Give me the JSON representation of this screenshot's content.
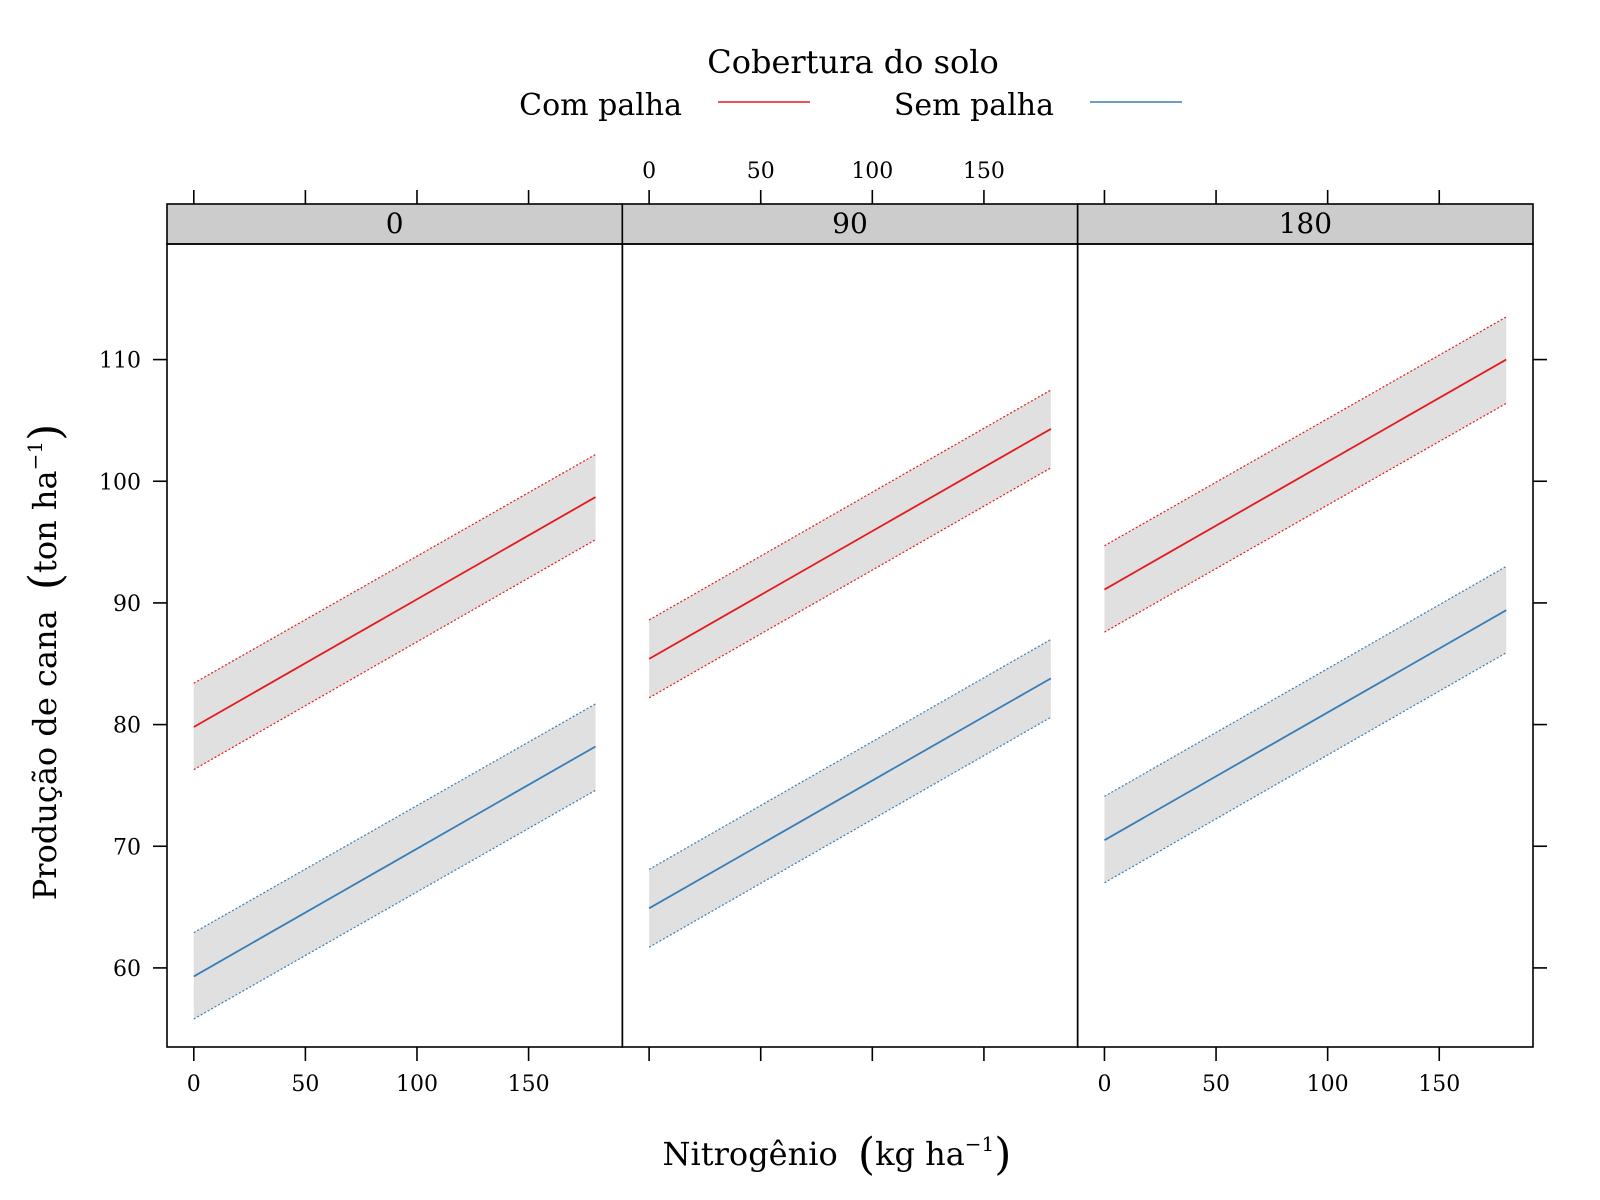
{
  "chart_data": {
    "type": "line",
    "legend": {
      "title": "Cobertura do solo",
      "placement": "top",
      "entries": [
        {
          "name": "Com palha",
          "color": "#e41a1c"
        },
        {
          "name": "Sem palha",
          "color": "#377eb8"
        }
      ]
    },
    "xlabel": {
      "text": "Nitrogênio",
      "unit": "kg  ha",
      "exponent": "−1"
    },
    "ylabel": {
      "text": "Produção de cana",
      "unit": "ton  ha",
      "exponent": "−1"
    },
    "xlim": [
      -12,
      192
    ],
    "ylim": [
      53.5,
      119.5
    ],
    "x_ticks": [
      0,
      50,
      100,
      150
    ],
    "y_ticks": [
      60,
      70,
      80,
      90,
      100,
      110
    ],
    "band_color": "#e0e0e0",
    "strip_color": "#cccccc",
    "panels": [
      {
        "label": "0",
        "series": [
          {
            "name": "Com palha",
            "color": "#e41a1c",
            "x": [
              0,
              180
            ],
            "y": [
              79.8,
              98.7
            ],
            "lower": [
              76.3,
              95.2
            ],
            "upper": [
              83.4,
              102.2
            ]
          },
          {
            "name": "Sem palha",
            "color": "#377eb8",
            "x": [
              0,
              180
            ],
            "y": [
              59.3,
              78.2
            ],
            "lower": [
              55.8,
              74.6
            ],
            "upper": [
              62.9,
              81.7
            ]
          }
        ]
      },
      {
        "label": "90",
        "series": [
          {
            "name": "Com palha",
            "color": "#e41a1c",
            "x": [
              0,
              180
            ],
            "y": [
              85.4,
              104.3
            ],
            "lower": [
              82.2,
              101.1
            ],
            "upper": [
              88.6,
              107.5
            ]
          },
          {
            "name": "Sem palha",
            "color": "#377eb8",
            "x": [
              0,
              180
            ],
            "y": [
              64.9,
              83.8
            ],
            "lower": [
              61.7,
              80.6
            ],
            "upper": [
              68.1,
              87.0
            ]
          }
        ]
      },
      {
        "label": "180",
        "series": [
          {
            "name": "Com palha",
            "color": "#e41a1c",
            "x": [
              0,
              180
            ],
            "y": [
              91.1,
              110.0
            ],
            "lower": [
              87.6,
              106.4
            ],
            "upper": [
              94.7,
              113.5
            ]
          },
          {
            "name": "Sem palha",
            "color": "#377eb8",
            "x": [
              0,
              180
            ],
            "y": [
              70.5,
              89.4
            ],
            "lower": [
              67.0,
              85.9
            ],
            "upper": [
              74.1,
              93.0
            ]
          }
        ]
      }
    ]
  }
}
